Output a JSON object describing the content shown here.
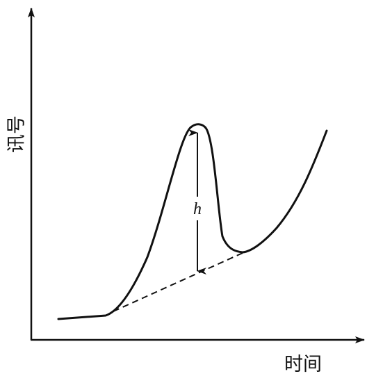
{
  "figure": {
    "y_axis_label": "讯号",
    "x_axis_label": "时间",
    "peak_height_label": "h"
  },
  "colors": {
    "ink": "#111111",
    "background": "#ffffff"
  }
}
